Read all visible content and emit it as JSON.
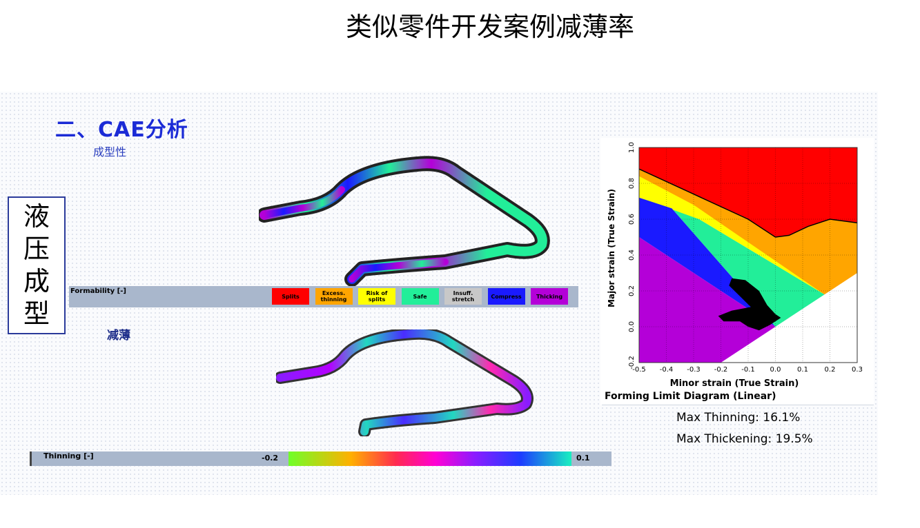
{
  "title": "类似零件开发案例减薄率",
  "section": {
    "heading": "二、CAE分析",
    "subheading": "成型性"
  },
  "vertical_label": [
    "液",
    "压",
    "成",
    "型"
  ],
  "formability_legend": {
    "title": "Formability [-]",
    "items": [
      {
        "label": "Splits",
        "color": "#ff0000"
      },
      {
        "label": "Excess. thinning",
        "color": "#ffa500"
      },
      {
        "label": "Risk of splits",
        "color": "#ffff00"
      },
      {
        "label": "Safe",
        "color": "#22ee99"
      },
      {
        "label": "Insuff. stretch",
        "color": "#c8c8c8"
      },
      {
        "label": "Compress",
        "color": "#1a1aff"
      },
      {
        "label": "Thicking",
        "color": "#b400d8"
      }
    ]
  },
  "thinning": {
    "label": "减薄",
    "bar_title": "Thinning [-]",
    "min_label": "-0.2",
    "max_label": "0.1"
  },
  "fld": {
    "caption": "Forming Limit Diagram (Linear)",
    "xlabel": "Minor strain (True Strain)",
    "ylabel": "Major strain (True Strain)",
    "x_ticks": [
      "-0.5",
      "-0.4",
      "-0.3",
      "-0.2",
      "-0.1",
      "0.0",
      "0.1",
      "0.2",
      "0.3"
    ],
    "y_ticks": [
      "-0.2",
      "0.0",
      "0.2",
      "0.4",
      "0.6",
      "0.8",
      "1.0"
    ],
    "xlim": [
      -0.5,
      0.3
    ],
    "ylim": [
      -0.2,
      1.0
    ],
    "colors": {
      "splits": "#ff0000",
      "excess": "#ffa500",
      "risk": "#ffff00",
      "safe": "#22ee99",
      "compress": "#1a1aff",
      "thick": "#b400d8"
    }
  },
  "results": {
    "max_thinning": "Max Thinning:  16.1%",
    "max_thickening": "Max Thickening: 19.5%"
  }
}
